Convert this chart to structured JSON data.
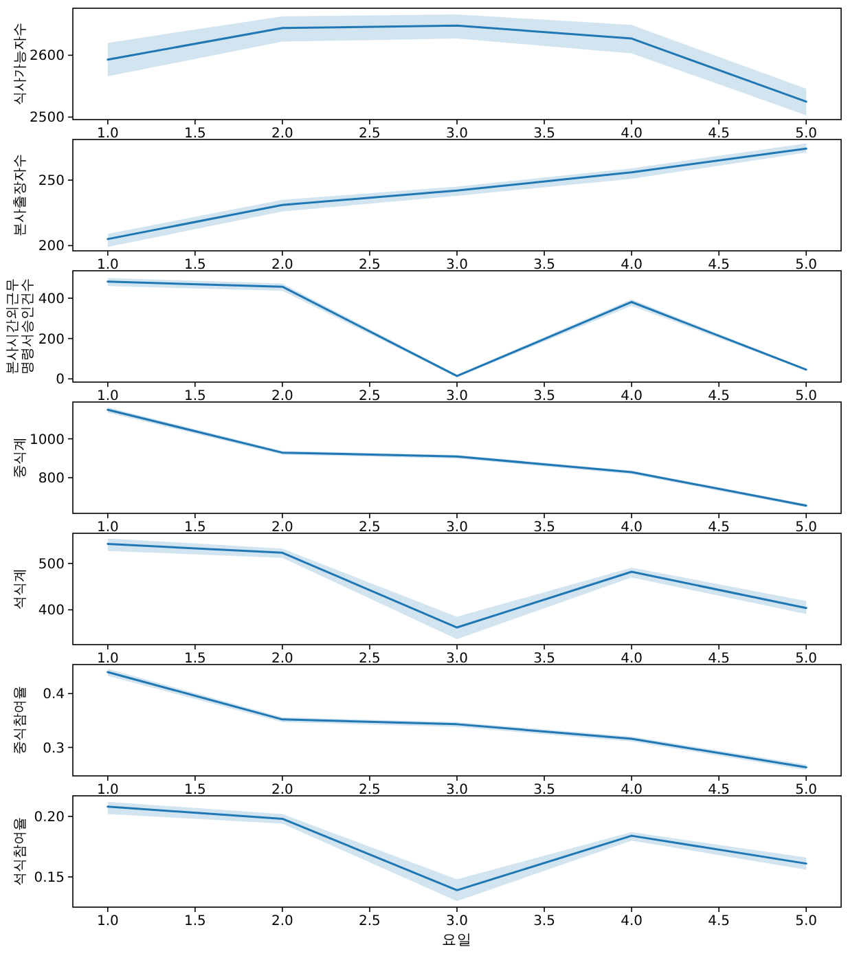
{
  "chart_data": [
    {
      "type": "line",
      "ylabel": "식사가능자수",
      "x": [
        1,
        2,
        3,
        4,
        5
      ],
      "xlim": [
        0.8,
        5.2
      ],
      "xticks": [
        {
          "value": 1,
          "label": "1.0"
        },
        {
          "value": 1.5,
          "label": "1.5"
        },
        {
          "value": 2,
          "label": "2.0"
        },
        {
          "value": 2.5,
          "label": "2.5"
        },
        {
          "value": 3,
          "label": "3.0"
        },
        {
          "value": 3.5,
          "label": "3.5"
        },
        {
          "value": 4,
          "label": "4.0"
        },
        {
          "value": 4.5,
          "label": "4.5"
        },
        {
          "value": 5,
          "label": "5.0"
        }
      ],
      "ylim": [
        2496,
        2676
      ],
      "yticks": [
        2500,
        2600
      ],
      "series": [
        {
          "color": "#1f77b4",
          "values": [
            2593,
            2644,
            2648,
            2627,
            2525
          ],
          "lower": [
            2566,
            2622,
            2627,
            2603,
            2503
          ],
          "upper": [
            2620,
            2663,
            2666,
            2649,
            2546
          ]
        }
      ]
    },
    {
      "type": "line",
      "ylabel": "본사출장자수",
      "x": [
        1,
        2,
        3,
        4,
        5
      ],
      "xlim": [
        0.8,
        5.2
      ],
      "xticks": [
        {
          "value": 1,
          "label": "1.0"
        },
        {
          "value": 1.5,
          "label": "1.5"
        },
        {
          "value": 2,
          "label": "2.0"
        },
        {
          "value": 2.5,
          "label": "2.5"
        },
        {
          "value": 3,
          "label": "3.0"
        },
        {
          "value": 3.5,
          "label": "3.5"
        },
        {
          "value": 4,
          "label": "4.0"
        },
        {
          "value": 4.5,
          "label": "4.5"
        },
        {
          "value": 5,
          "label": "5.0"
        }
      ],
      "ylim": [
        196,
        281
      ],
      "yticks": [
        200,
        250
      ],
      "series": [
        {
          "color": "#1f77b4",
          "values": [
            205,
            231,
            242,
            256,
            274
          ],
          "lower": [
            199,
            226,
            238,
            251,
            271
          ],
          "upper": [
            209,
            235,
            245,
            259,
            278
          ]
        }
      ]
    },
    {
      "type": "line",
      "ylabel": "본사시간외근무명령서승인건수",
      "x": [
        1,
        2,
        3,
        4,
        5
      ],
      "xlim": [
        0.8,
        5.2
      ],
      "xticks": [
        {
          "value": 1,
          "label": "1.0"
        },
        {
          "value": 1.5,
          "label": "1.5"
        },
        {
          "value": 2,
          "label": "2.0"
        },
        {
          "value": 2.5,
          "label": "2.5"
        },
        {
          "value": 3,
          "label": "3.0"
        },
        {
          "value": 3.5,
          "label": "3.5"
        },
        {
          "value": 4,
          "label": "4.0"
        },
        {
          "value": 4.5,
          "label": "4.5"
        },
        {
          "value": 5,
          "label": "5.0"
        }
      ],
      "ylim": [
        -16,
        536
      ],
      "yticks": [
        0,
        200,
        400
      ],
      "series": [
        {
          "color": "#1f77b4",
          "values": [
            482,
            457,
            14,
            381,
            46
          ],
          "lower": [
            460,
            437,
            8,
            362,
            42
          ],
          "upper": [
            500,
            473,
            20,
            395,
            50
          ]
        }
      ]
    },
    {
      "type": "line",
      "ylabel": "중식계",
      "x": [
        1,
        2,
        3,
        4,
        5
      ],
      "xlim": [
        0.8,
        5.2
      ],
      "xticks": [
        {
          "value": 1,
          "label": "1.0"
        },
        {
          "value": 1.5,
          "label": "1.5"
        },
        {
          "value": 2,
          "label": "2.0"
        },
        {
          "value": 2.5,
          "label": "2.5"
        },
        {
          "value": 3,
          "label": "3.0"
        },
        {
          "value": 3.5,
          "label": "3.5"
        },
        {
          "value": 4,
          "label": "4.0"
        },
        {
          "value": 4.5,
          "label": "4.5"
        },
        {
          "value": 5,
          "label": "5.0"
        }
      ],
      "ylim": [
        617,
        1189
      ],
      "yticks": [
        800,
        1000
      ],
      "series": [
        {
          "color": "#1f77b4",
          "values": [
            1149,
            929,
            909,
            829,
            657
          ],
          "lower": [
            1134,
            919,
            899,
            818,
            648
          ],
          "upper": [
            1162,
            937,
            917,
            837,
            665
          ]
        }
      ]
    },
    {
      "type": "line",
      "ylabel": "석식계",
      "x": [
        1,
        2,
        3,
        4,
        5
      ],
      "xlim": [
        0.8,
        5.2
      ],
      "xticks": [
        {
          "value": 1,
          "label": "1.0"
        },
        {
          "value": 1.5,
          "label": "1.5"
        },
        {
          "value": 2,
          "label": "2.0"
        },
        {
          "value": 2.5,
          "label": "2.5"
        },
        {
          "value": 3,
          "label": "3.0"
        },
        {
          "value": 3.5,
          "label": "3.5"
        },
        {
          "value": 4,
          "label": "4.0"
        },
        {
          "value": 4.5,
          "label": "4.5"
        },
        {
          "value": 5,
          "label": "5.0"
        }
      ],
      "ylim": [
        325,
        565
      ],
      "yticks": [
        400,
        500
      ],
      "series": [
        {
          "color": "#1f77b4",
          "values": [
            542,
            523,
            362,
            482,
            404
          ],
          "lower": [
            527,
            512,
            337,
            470,
            391
          ],
          "upper": [
            554,
            532,
            385,
            491,
            419
          ]
        }
      ]
    },
    {
      "type": "line",
      "ylabel": "중식참여율",
      "x": [
        1,
        2,
        3,
        4,
        5
      ],
      "xlim": [
        0.8,
        5.2
      ],
      "xticks": [
        {
          "value": 1,
          "label": "1.0"
        },
        {
          "value": 1.5,
          "label": "1.5"
        },
        {
          "value": 2,
          "label": "2.0"
        },
        {
          "value": 2.5,
          "label": "2.5"
        },
        {
          "value": 3,
          "label": "3.0"
        },
        {
          "value": 3.5,
          "label": "3.5"
        },
        {
          "value": 4,
          "label": "4.0"
        },
        {
          "value": 4.5,
          "label": "4.5"
        },
        {
          "value": 5,
          "label": "5.0"
        }
      ],
      "ylim": [
        0.247,
        0.454
      ],
      "yticks": [
        0.3,
        0.4
      ],
      "series": [
        {
          "color": "#1f77b4",
          "values": [
            0.44,
            0.352,
            0.343,
            0.316,
            0.263
          ],
          "lower": [
            0.433,
            0.347,
            0.338,
            0.311,
            0.258
          ],
          "upper": [
            0.446,
            0.356,
            0.347,
            0.32,
            0.268
          ]
        }
      ]
    },
    {
      "type": "line",
      "ylabel": "석식참여율",
      "xlabel": "요일",
      "x": [
        1,
        2,
        3,
        4,
        5
      ],
      "xlim": [
        0.8,
        5.2
      ],
      "xticks": [
        {
          "value": 1,
          "label": "1.0"
        },
        {
          "value": 1.5,
          "label": "1.5"
        },
        {
          "value": 2,
          "label": "2.0"
        },
        {
          "value": 2.5,
          "label": "2.5"
        },
        {
          "value": 3,
          "label": "3.0"
        },
        {
          "value": 3.5,
          "label": "3.5"
        },
        {
          "value": 4,
          "label": "4.0"
        },
        {
          "value": 4.5,
          "label": "4.5"
        },
        {
          "value": 5,
          "label": "5.0"
        }
      ],
      "ylim": [
        0.125,
        0.217
      ],
      "yticks": [
        {
          "value": 0.15,
          "label": "0.15"
        },
        {
          "value": 0.2,
          "label": "0.20"
        }
      ],
      "series": [
        {
          "color": "#1f77b4",
          "values": [
            0.208,
            0.198,
            0.139,
            0.184,
            0.161
          ],
          "lower": [
            0.202,
            0.194,
            0.13,
            0.18,
            0.156
          ],
          "upper": [
            0.212,
            0.202,
            0.148,
            0.187,
            0.166
          ]
        }
      ]
    }
  ]
}
